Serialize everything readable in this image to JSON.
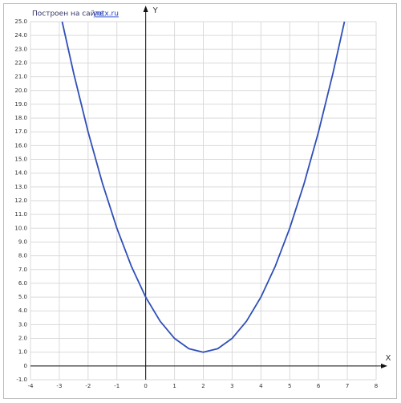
{
  "chart_data": {
    "type": "line",
    "annotation": {
      "text": "Построен на сайте",
      "link": "yotx.ru"
    },
    "x_label": "X",
    "y_label": "Y",
    "x": [
      -2.9,
      -2.5,
      -2,
      -1.5,
      -1,
      -0.5,
      0,
      0.5,
      1,
      1.5,
      2,
      2.5,
      3,
      3.5,
      4,
      4.5,
      5,
      5.5,
      6,
      6.5,
      6.9
    ],
    "series": [
      {
        "color": "#2f4fb8",
        "values": [
          25.0,
          21.25,
          17,
          13.25,
          10,
          7.25,
          5,
          3.25,
          2,
          1.25,
          1,
          1.25,
          2,
          3.25,
          5,
          7.25,
          10,
          13.25,
          17,
          21.25,
          25.0
        ]
      }
    ],
    "xlim": [
      -4,
      8
    ],
    "ylim": [
      -1,
      25
    ],
    "xticks": [
      -4,
      -3,
      -2,
      -1,
      0,
      1,
      2,
      3,
      4,
      5,
      6,
      7,
      8
    ],
    "yticks": [
      {
        "value": -1,
        "label": "-1.0"
      },
      0,
      {
        "value": 1,
        "label": "1.0"
      },
      {
        "value": 2,
        "label": "2.0"
      },
      {
        "value": 3,
        "label": "3.0"
      },
      {
        "value": 4,
        "label": "4.0"
      },
      {
        "value": 5,
        "label": "5.0"
      },
      {
        "value": 6,
        "label": "6.0"
      },
      {
        "value": 7,
        "label": "7.0"
      },
      {
        "value": 8,
        "label": "8.0"
      },
      {
        "value": 9,
        "label": "9.0"
      },
      {
        "value": 10,
        "label": "10.0"
      },
      {
        "value": 11,
        "label": "11.0"
      },
      {
        "value": 12,
        "label": "12.0"
      },
      {
        "value": 13,
        "label": "13.0"
      },
      {
        "value": 14,
        "label": "14.0"
      },
      {
        "value": 15,
        "label": "15.0"
      },
      {
        "value": 16,
        "label": "16.0"
      },
      {
        "value": 17,
        "label": "17.0"
      },
      {
        "value": 18,
        "label": "18.0"
      },
      {
        "value": 19,
        "label": "19.0"
      },
      {
        "value": 20,
        "label": "20.0"
      },
      {
        "value": 21,
        "label": "21.0"
      },
      {
        "value": 22,
        "label": "22.0"
      },
      {
        "value": 23,
        "label": "23.0"
      },
      {
        "value": 24,
        "label": "24.0"
      },
      {
        "value": 25,
        "label": "25.0"
      }
    ],
    "grid": true
  }
}
